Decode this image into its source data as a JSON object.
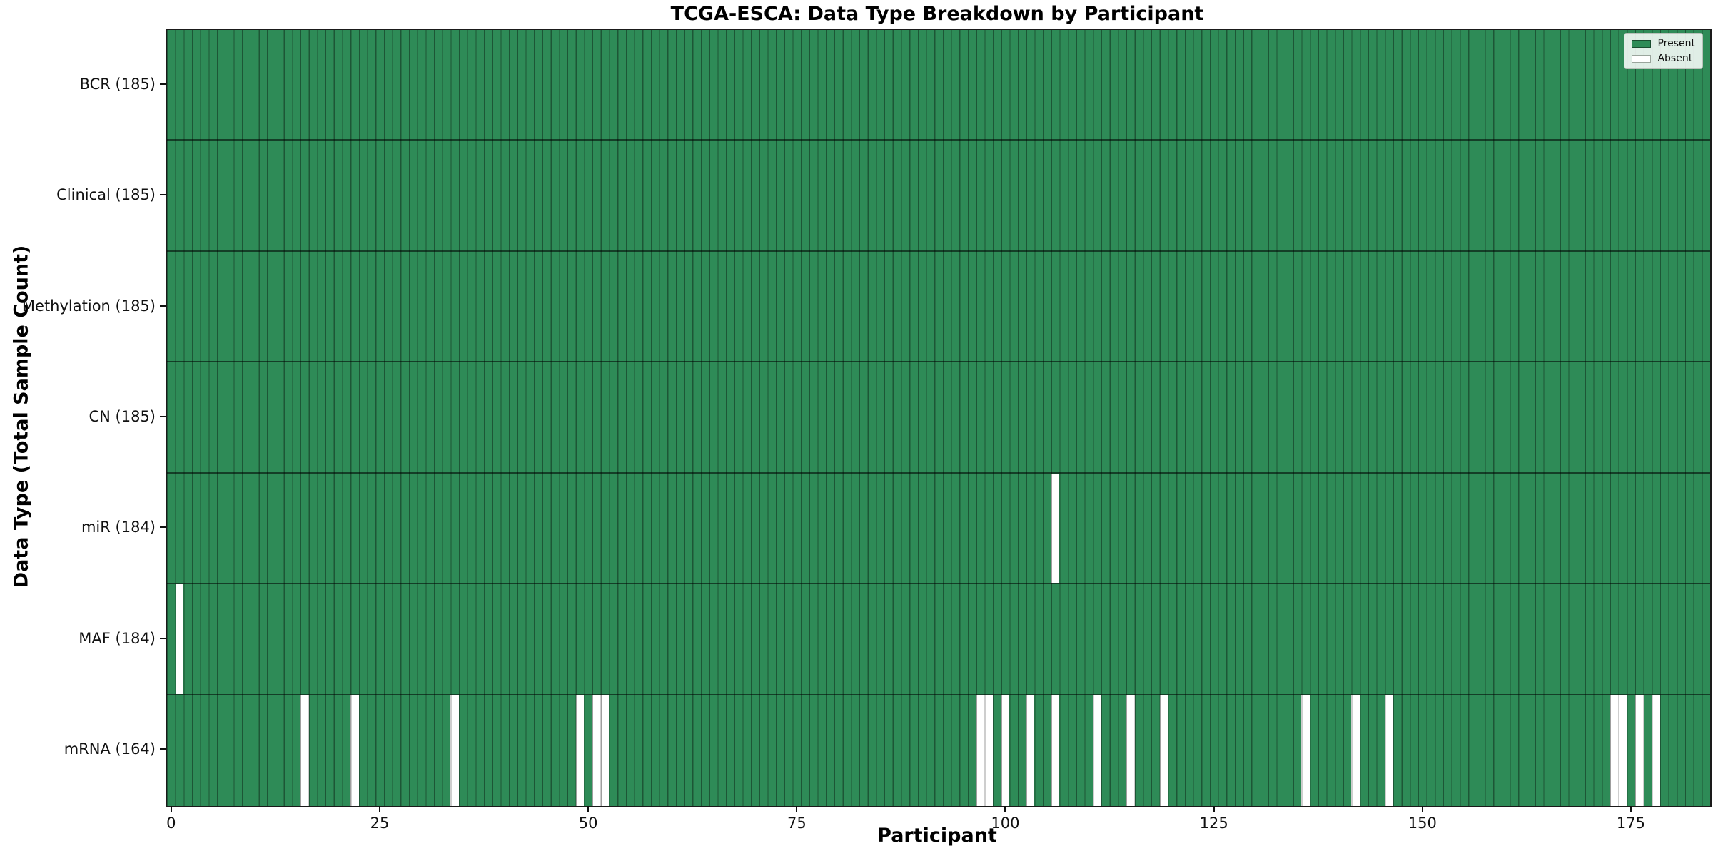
{
  "chart_data": {
    "type": "heatmap",
    "title": "TCGA-ESCA: Data Type Breakdown by Participant",
    "xlabel": "Participant",
    "ylabel": "Data Type (Total Sample Count)",
    "n_participants": 185,
    "x_ticks": [
      0,
      25,
      50,
      75,
      100,
      125,
      150,
      175
    ],
    "grid": true,
    "colors": {
      "present": "#2e8b57",
      "absent": "#ffffff",
      "present_edge": "#1a4d30",
      "cell_gridline": "rgba(0,0,0,0.38)",
      "row_divider": "rgba(0,0,0,0.55)"
    },
    "legend": {
      "position": "upper right",
      "entries": [
        {
          "label": "Present",
          "color": "#2e8b57"
        },
        {
          "label": "Absent",
          "color": "#ffffff"
        }
      ]
    },
    "rows": [
      {
        "label": "BCR (185)",
        "data_type": "BCR",
        "total": 185,
        "absent_participants": []
      },
      {
        "label": "Clinical (185)",
        "data_type": "Clinical",
        "total": 185,
        "absent_participants": []
      },
      {
        "label": "Methylation (185)",
        "data_type": "Methylation",
        "total": 185,
        "absent_participants": []
      },
      {
        "label": "CN (185)",
        "data_type": "CN",
        "total": 185,
        "absent_participants": []
      },
      {
        "label": "miR (184)",
        "data_type": "miR",
        "total": 184,
        "absent_participants": [
          106
        ]
      },
      {
        "label": "MAF (184)",
        "data_type": "MAF",
        "total": 184,
        "absent_participants": [
          1
        ]
      },
      {
        "label": "mRNA (164)",
        "data_type": "mRNA",
        "total": 164,
        "absent_participants": [
          16,
          22,
          34,
          49,
          51,
          52,
          97,
          98,
          100,
          103,
          106,
          111,
          115,
          119,
          136,
          142,
          146,
          173,
          174,
          176,
          178
        ]
      }
    ]
  }
}
